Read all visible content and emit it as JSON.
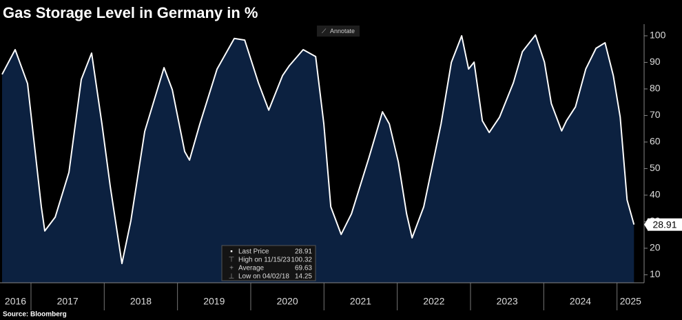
{
  "chart_data": {
    "type": "area",
    "title": "Gas Storage Level in Germany in %",
    "source": "Source: Bloomberg",
    "button": "Annotate",
    "series": [
      {
        "name": "Last Price",
        "color": "#ffffff",
        "fill": "#0c2140",
        "x": [
          2016.605,
          2016.784,
          2016.953,
          2017.141,
          2017.188,
          2017.33,
          2017.518,
          2017.687,
          2017.828,
          2017.969,
          2018.082,
          2018.242,
          2018.364,
          2018.553,
          2018.816,
          2018.929,
          2019.098,
          2019.164,
          2019.305,
          2019.54,
          2019.775,
          2019.917,
          2020.105,
          2020.246,
          2020.434,
          2020.528,
          2020.716,
          2020.886,
          2020.998,
          2021.093,
          2021.234,
          2021.375,
          2021.61,
          2021.798,
          2021.892,
          2022.015,
          2022.127,
          2022.203,
          2022.362,
          2022.598,
          2022.739,
          2022.88,
          2022.974,
          2023.049,
          2023.162,
          2023.256,
          2023.397,
          2023.585,
          2023.708,
          2023.887,
          2024.009,
          2024.103,
          2024.244,
          2024.31,
          2024.432,
          2024.573,
          2024.714,
          2024.837,
          2024.95,
          2025.044,
          2025.138,
          2025.232
        ],
        "values": [
          85.5,
          94.8,
          82,
          35.6,
          26.5,
          31.7,
          48.6,
          83.6,
          93.5,
          66.8,
          43.4,
          14.25,
          30.4,
          64,
          88,
          79.7,
          56.4,
          53.2,
          66.8,
          87.5,
          99,
          98.4,
          82.3,
          72,
          85,
          88.8,
          94.8,
          92.2,
          66.8,
          35.6,
          25.2,
          33,
          53.8,
          71.4,
          66.8,
          52.5,
          33,
          23.9,
          35.6,
          66.8,
          90,
          100,
          87.5,
          90.1,
          68,
          63.6,
          69.4,
          82.3,
          94,
          100.32,
          90.1,
          74.5,
          64.2,
          68,
          73.2,
          87.5,
          95.3,
          97.4,
          85,
          69.4,
          38.2,
          28.91
        ]
      }
    ],
    "last_price": 28.91,
    "legend": [
      {
        "label": "Last Price",
        "value": 28.91
      },
      {
        "label": "High on 11/15/23",
        "value": 100.32
      },
      {
        "label": "Average",
        "value": 69.63
      },
      {
        "label": "Low on 04/02/18",
        "value": 14.25
      }
    ],
    "xlim": [
      2016.577,
      2025.37
    ],
    "xticks": [
      2016,
      2017,
      2018,
      2019,
      2020,
      2021,
      2022,
      2023,
      2024,
      2025
    ],
    "ylim": [
      7,
      104.4
    ],
    "yticks": [
      10,
      20,
      30,
      40,
      50,
      60,
      70,
      80,
      90,
      100
    ]
  }
}
